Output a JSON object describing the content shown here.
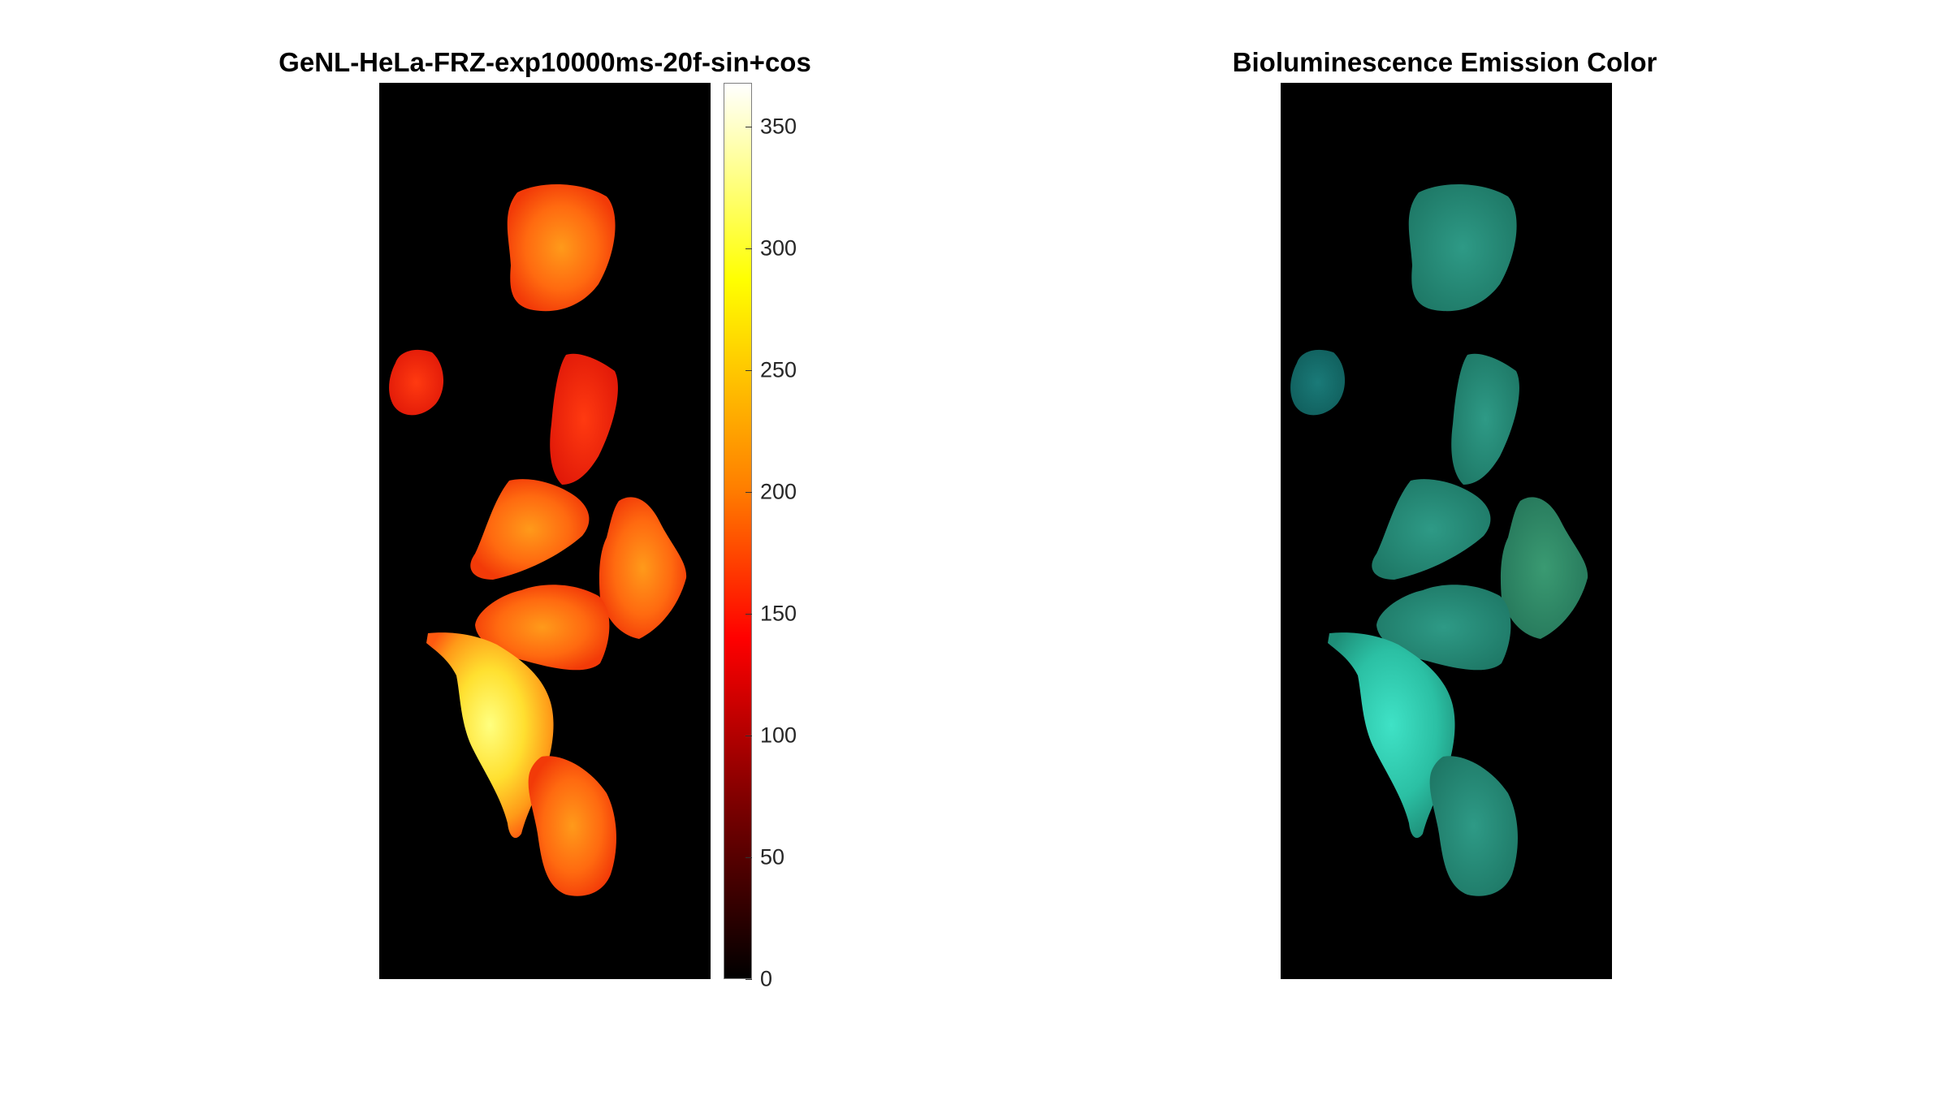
{
  "left_panel": {
    "title": "GeNL-HeLa-FRZ-exp10000ms-20f-sin+cos",
    "colormap": "hot",
    "colorbar": {
      "min": 0,
      "max": 368,
      "ticks": [
        "0",
        "50",
        "100",
        "150",
        "200",
        "250",
        "300",
        "350"
      ]
    }
  },
  "right_panel": {
    "title": "Bioluminescence Emission Color",
    "tint": "cyan-green"
  },
  "colors": {
    "background": "#000000",
    "colorbar_gradient": [
      "#000000",
      "#800000",
      "#ff0000",
      "#ff8000",
      "#ffff00",
      "#ffffff"
    ]
  },
  "cells": [
    {
      "name": "cell-top",
      "intensity": 190
    },
    {
      "name": "cell-small-left",
      "intensity": 140
    },
    {
      "name": "cell-upper-mid",
      "intensity": 150
    },
    {
      "name": "cell-mid-left",
      "intensity": 180
    },
    {
      "name": "cell-mid-right",
      "intensity": 185
    },
    {
      "name": "cell-center",
      "intensity": 170
    },
    {
      "name": "cell-bright",
      "intensity": 330
    },
    {
      "name": "cell-bottom",
      "intensity": 200
    }
  ]
}
